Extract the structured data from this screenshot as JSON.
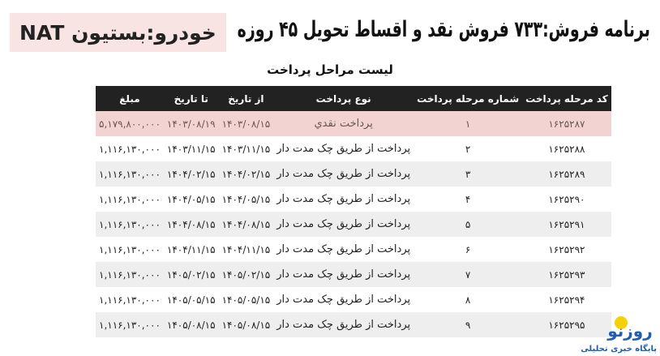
{
  "title": "برنامه فروش:۷۳۳ فروش نقد و اقساط تحویل ۴۵ روزه",
  "car_label": "خودرو:بستیون NAT",
  "subtitle": "لیست مراحل پرداخت",
  "columns": [
    "کد مرحله پرداخت",
    "شماره مرحله پرداخت",
    "نوع پرداخت",
    "از تاریخ",
    "تا تاریخ",
    "مبلغ"
  ],
  "rows": [
    {
      "code": "۱۶۲۵۲۸۷",
      "step": "۱",
      "type": "پرداخت نقدي",
      "from": "۱۴۰۳/۰۸/۱۵",
      "to": "۱۴۰۳/۰۸/۱۹",
      "amount": "۵,۱۷۹,۸۰۰,۰۰۰"
    },
    {
      "code": "۱۶۲۵۲۸۸",
      "step": "۲",
      "type": "پرداخت از طریق چک مدت دار",
      "from": "۱۴۰۳/۱۱/۱۵",
      "to": "۱۴۰۳/۱۱/۱۵",
      "amount": "۱,۱۱۶,۱۳۰,۰۰۰"
    },
    {
      "code": "۱۶۲۵۲۸۹",
      "step": "۳",
      "type": "پرداخت از طریق چک مدت دار",
      "from": "۱۴۰۴/۰۲/۱۵",
      "to": "۱۴۰۴/۰۲/۱۵",
      "amount": "۱,۱۱۶,۱۳۰,۰۰۰"
    },
    {
      "code": "۱۶۲۵۲۹۰",
      "step": "۴",
      "type": "پرداخت از طریق چک مدت دار",
      "from": "۱۴۰۴/۰۵/۱۵",
      "to": "۱۴۰۴/۰۵/۱۵",
      "amount": "۱,۱۱۶,۱۳۰,۰۰۰"
    },
    {
      "code": "۱۶۲۵۲۹۱",
      "step": "۵",
      "type": "پرداخت از طریق چک مدت دار",
      "from": "۱۴۰۴/۰۸/۱۵",
      "to": "۱۴۰۴/۰۸/۱۵",
      "amount": "۱,۱۱۶,۱۳۰,۰۰۰"
    },
    {
      "code": "۱۶۲۵۲۹۲",
      "step": "۶",
      "type": "پرداخت از طریق چک مدت دار",
      "from": "۱۴۰۴/۱۱/۱۵",
      "to": "۱۴۰۴/۱۱/۱۵",
      "amount": "۱,۱۱۶,۱۳۰,۰۰۰"
    },
    {
      "code": "۱۶۲۵۲۹۳",
      "step": "۷",
      "type": "پرداخت از طریق چک مدت دار",
      "from": "۱۴۰۵/۰۲/۱۵",
      "to": "۱۴۰۵/۰۲/۱۵",
      "amount": "۱,۱۱۶,۱۳۰,۰۰۰"
    },
    {
      "code": "۱۶۲۵۲۹۴",
      "step": "۸",
      "type": "پرداخت از طریق چک مدت دار",
      "from": "۱۴۰۵/۰۵/۱۵",
      "to": "۱۴۰۵/۰۵/۱۵",
      "amount": "۱,۱۱۶,۱۳۰,۰۰۰"
    },
    {
      "code": "۱۶۲۵۲۹۵",
      "step": "۹",
      "type": "پرداخت از طریق چک مدت دار",
      "from": "۱۴۰۵/۰۸/۱۵",
      "to": "۱۴۰۵/۰۸/۱۵",
      "amount": "۱,۱۱۶,۱۳۰,۰۰۰"
    }
  ],
  "logo": {
    "name": "روزنو",
    "tagline": "پایگاه خبری تحلیلی"
  },
  "colors": {
    "header_bg": "#222222",
    "first_row_bg": "#f2d3d2",
    "car_box_bg": "#f8e4e2",
    "logo_blue": "#1e5fb0",
    "logo_sun": "#f5d10a"
  }
}
